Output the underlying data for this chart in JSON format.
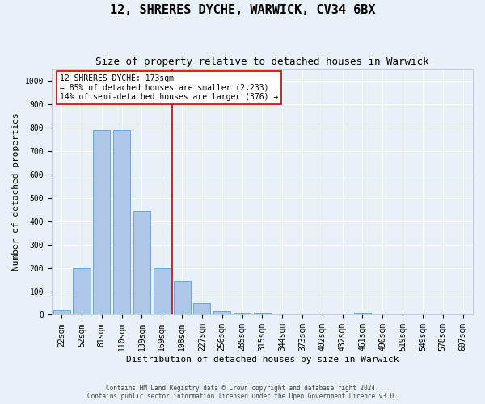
{
  "title1": "12, SHRERES DYCHE, WARWICK, CV34 6BX",
  "title2": "Size of property relative to detached houses in Warwick",
  "xlabel": "Distribution of detached houses by size in Warwick",
  "ylabel": "Number of detached properties",
  "categories": [
    "22sqm",
    "52sqm",
    "81sqm",
    "110sqm",
    "139sqm",
    "169sqm",
    "198sqm",
    "227sqm",
    "256sqm",
    "285sqm",
    "315sqm",
    "344sqm",
    "373sqm",
    "402sqm",
    "432sqm",
    "461sqm",
    "490sqm",
    "519sqm",
    "549sqm",
    "578sqm",
    "607sqm"
  ],
  "values": [
    18,
    197,
    790,
    790,
    443,
    197,
    143,
    50,
    15,
    10,
    10,
    0,
    0,
    0,
    0,
    10,
    0,
    0,
    0,
    0,
    0
  ],
  "bar_color": "#aec6e8",
  "bar_edge_color": "#5a9fd4",
  "vline_x": 5.5,
  "vline_color": "#cc0000",
  "annotation_text": "12 SHRERES DYCHE: 173sqm\n← 85% of detached houses are smaller (2,233)\n14% of semi-detached houses are larger (376) →",
  "annotation_box_color": "#ffffff",
  "annotation_box_edge": "#cc0000",
  "ylim": [
    0,
    1050
  ],
  "yticks": [
    0,
    100,
    200,
    300,
    400,
    500,
    600,
    700,
    800,
    900,
    1000
  ],
  "footer": "Contains HM Land Registry data © Crown copyright and database right 2024.\nContains public sector information licensed under the Open Government Licence v3.0.",
  "bg_color": "#e8f0f8",
  "fig_bg_color": "#e8f0f8",
  "grid_color": "#ffffff",
  "title1_fontsize": 11,
  "title2_fontsize": 9,
  "xlabel_fontsize": 8,
  "ylabel_fontsize": 8,
  "tick_fontsize": 7,
  "annot_fontsize": 7
}
